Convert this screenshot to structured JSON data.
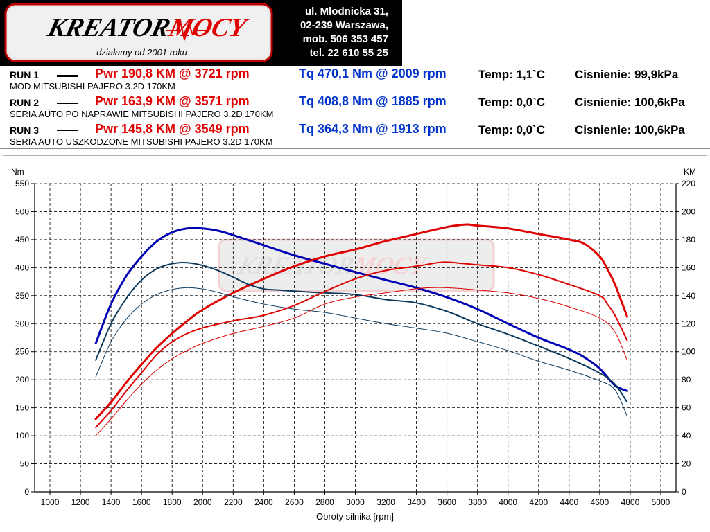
{
  "logo": {
    "brand": "KreatorMocy",
    "brand_part1": "KREATOR",
    "brand_part2": "MOCY",
    "tagline": "działamy od 2001 roku"
  },
  "address": {
    "line1": "ul. Młodnicka 31,",
    "line2": "02-239  Warszawa,",
    "line3": "mob.  506 353 457",
    "line4": "tel.  22 610 55 25"
  },
  "runs": [
    {
      "label": "RUN 1",
      "pwr": "Pwr  190,8 KM @ 3721 rpm",
      "tq": "Tq 470,1 Nm @ 2009 rpm",
      "temp": "Temp: 1,1`C",
      "pressure": "Cisnienie: 99,9kPa",
      "description": "MOD MITSUBISHI PAJERO 3.2D 170KM"
    },
    {
      "label": "RUN 2",
      "pwr": "Pwr  163,9 KM @ 3571 rpm",
      "tq": "Tq 408,8 Nm @ 1885 rpm",
      "temp": "Temp: 0,0`C",
      "pressure": "Cisnienie: 100,6kPa",
      "description": "SERIA  AUTO PO NAPRAWIE  MITSUBISHI PAJERO 3.2D 170KM"
    },
    {
      "label": "RUN 3",
      "pwr": "Pwr  145,8 KM @ 3549 rpm",
      "tq": "Tq 364,3 Nm @ 1913 rpm",
      "temp": "Temp: 0,0`C",
      "pressure": "Cisnienie: 100,6kPa",
      "description": "SERIA  AUTO USZKODZONE MITSUBISHI PAJERO 3.2D 170KM"
    }
  ],
  "colors": {
    "power": "#e00000",
    "torque_run1": "#0000b4",
    "torque_run23": "#0b3a5e",
    "grid": "#000000"
  },
  "chart_data": {
    "type": "line",
    "xlabel": "Obroty silnika [rpm]",
    "ylabel_left": "Nm",
    "ylabel_right": "KM",
    "xlim": [
      900,
      5100
    ],
    "ylim_left": [
      0,
      550
    ],
    "ylim_right": [
      0,
      220
    ],
    "x_ticks": [
      1000,
      1200,
      1400,
      1600,
      1800,
      2000,
      2200,
      2400,
      2600,
      2800,
      3000,
      3200,
      3400,
      3600,
      3800,
      4000,
      4200,
      4400,
      4600,
      4800,
      5000
    ],
    "y_left_ticks": [
      0,
      50,
      100,
      150,
      200,
      250,
      300,
      350,
      400,
      450,
      500,
      550
    ],
    "y_right_ticks": [
      0,
      20,
      40,
      60,
      80,
      100,
      120,
      140,
      160,
      180,
      200,
      220
    ],
    "grid": true,
    "series": [
      {
        "name": "RUN 1",
        "quantity": "torque",
        "axis": "left",
        "width": 3,
        "x": [
          1300,
          1400,
          1500,
          1600,
          1700,
          1800,
          1900,
          2000,
          2100,
          2200,
          2400,
          2600,
          2800,
          3000,
          3200,
          3400,
          3600,
          3800,
          4000,
          4200,
          4400,
          4500,
          4600,
          4700,
          4780
        ],
        "y": [
          265,
          335,
          385,
          420,
          447,
          463,
          470,
          470,
          466,
          458,
          440,
          422,
          407,
          392,
          378,
          364,
          347,
          326,
          300,
          275,
          254,
          240,
          220,
          190,
          180
        ]
      },
      {
        "name": "RUN 1",
        "quantity": "power",
        "axis": "right",
        "width": 3,
        "x": [
          1300,
          1400,
          1500,
          1600,
          1700,
          1800,
          1900,
          2000,
          2200,
          2400,
          2600,
          2800,
          3000,
          3200,
          3400,
          3600,
          3721,
          3800,
          4000,
          4200,
          4400,
          4500,
          4600,
          4650,
          4700,
          4780
        ],
        "y": [
          52,
          64,
          78,
          91,
          103,
          113,
          122,
          130,
          142,
          152,
          161,
          168,
          173,
          179,
          184,
          189,
          190.8,
          190,
          188,
          184,
          180,
          177,
          168,
          159,
          148,
          125
        ]
      },
      {
        "name": "RUN 2",
        "quantity": "torque",
        "axis": "left",
        "width": 2,
        "x": [
          1300,
          1400,
          1500,
          1600,
          1700,
          1800,
          1900,
          2000,
          2100,
          2200,
          2300,
          2400,
          2500,
          2600,
          2800,
          3000,
          3200,
          3400,
          3600,
          3800,
          4000,
          4200,
          4400,
          4600,
          4700,
          4780
        ],
        "y": [
          235,
          300,
          345,
          378,
          398,
          407,
          408.8,
          404,
          395,
          383,
          370,
          362,
          360,
          358,
          355,
          352,
          343,
          337,
          322,
          300,
          281,
          260,
          238,
          212,
          192,
          160
        ]
      },
      {
        "name": "RUN 2",
        "quantity": "power",
        "axis": "right",
        "width": 2,
        "x": [
          1300,
          1400,
          1500,
          1600,
          1700,
          1800,
          1900,
          2000,
          2200,
          2400,
          2600,
          2800,
          3000,
          3200,
          3400,
          3571,
          3700,
          3800,
          4000,
          4200,
          4400,
          4600,
          4650,
          4700,
          4780
        ],
        "y": [
          46,
          58,
          72,
          85,
          98,
          107,
          113,
          117,
          122,
          126,
          133,
          143,
          152,
          158,
          161,
          163.9,
          163,
          162,
          160,
          155,
          148,
          140,
          134,
          126,
          108
        ]
      },
      {
        "name": "RUN 3",
        "quantity": "torque",
        "axis": "left",
        "width": 1,
        "x": [
          1300,
          1400,
          1500,
          1600,
          1700,
          1800,
          1900,
          2000,
          2100,
          2200,
          2400,
          2600,
          2800,
          3000,
          3200,
          3400,
          3600,
          3800,
          4000,
          4200,
          4400,
          4600,
          4700,
          4780
        ],
        "y": [
          205,
          268,
          308,
          335,
          352,
          361,
          364.3,
          362,
          356,
          348,
          335,
          326,
          320,
          310,
          300,
          292,
          283,
          268,
          252,
          233,
          217,
          198,
          182,
          135
        ]
      },
      {
        "name": "RUN 3",
        "quantity": "power",
        "axis": "right",
        "width": 1,
        "x": [
          1300,
          1400,
          1500,
          1600,
          1700,
          1800,
          1900,
          2000,
          2200,
          2400,
          2600,
          2800,
          3000,
          3200,
          3400,
          3549,
          3700,
          3800,
          4000,
          4200,
          4400,
          4600,
          4700,
          4780
        ],
        "y": [
          40,
          52,
          65,
          77,
          87,
          95,
          101,
          106,
          113,
          118,
          124,
          134,
          139,
          142,
          145,
          145.8,
          145,
          144,
          142,
          138,
          132,
          124,
          114,
          94
        ]
      }
    ]
  }
}
